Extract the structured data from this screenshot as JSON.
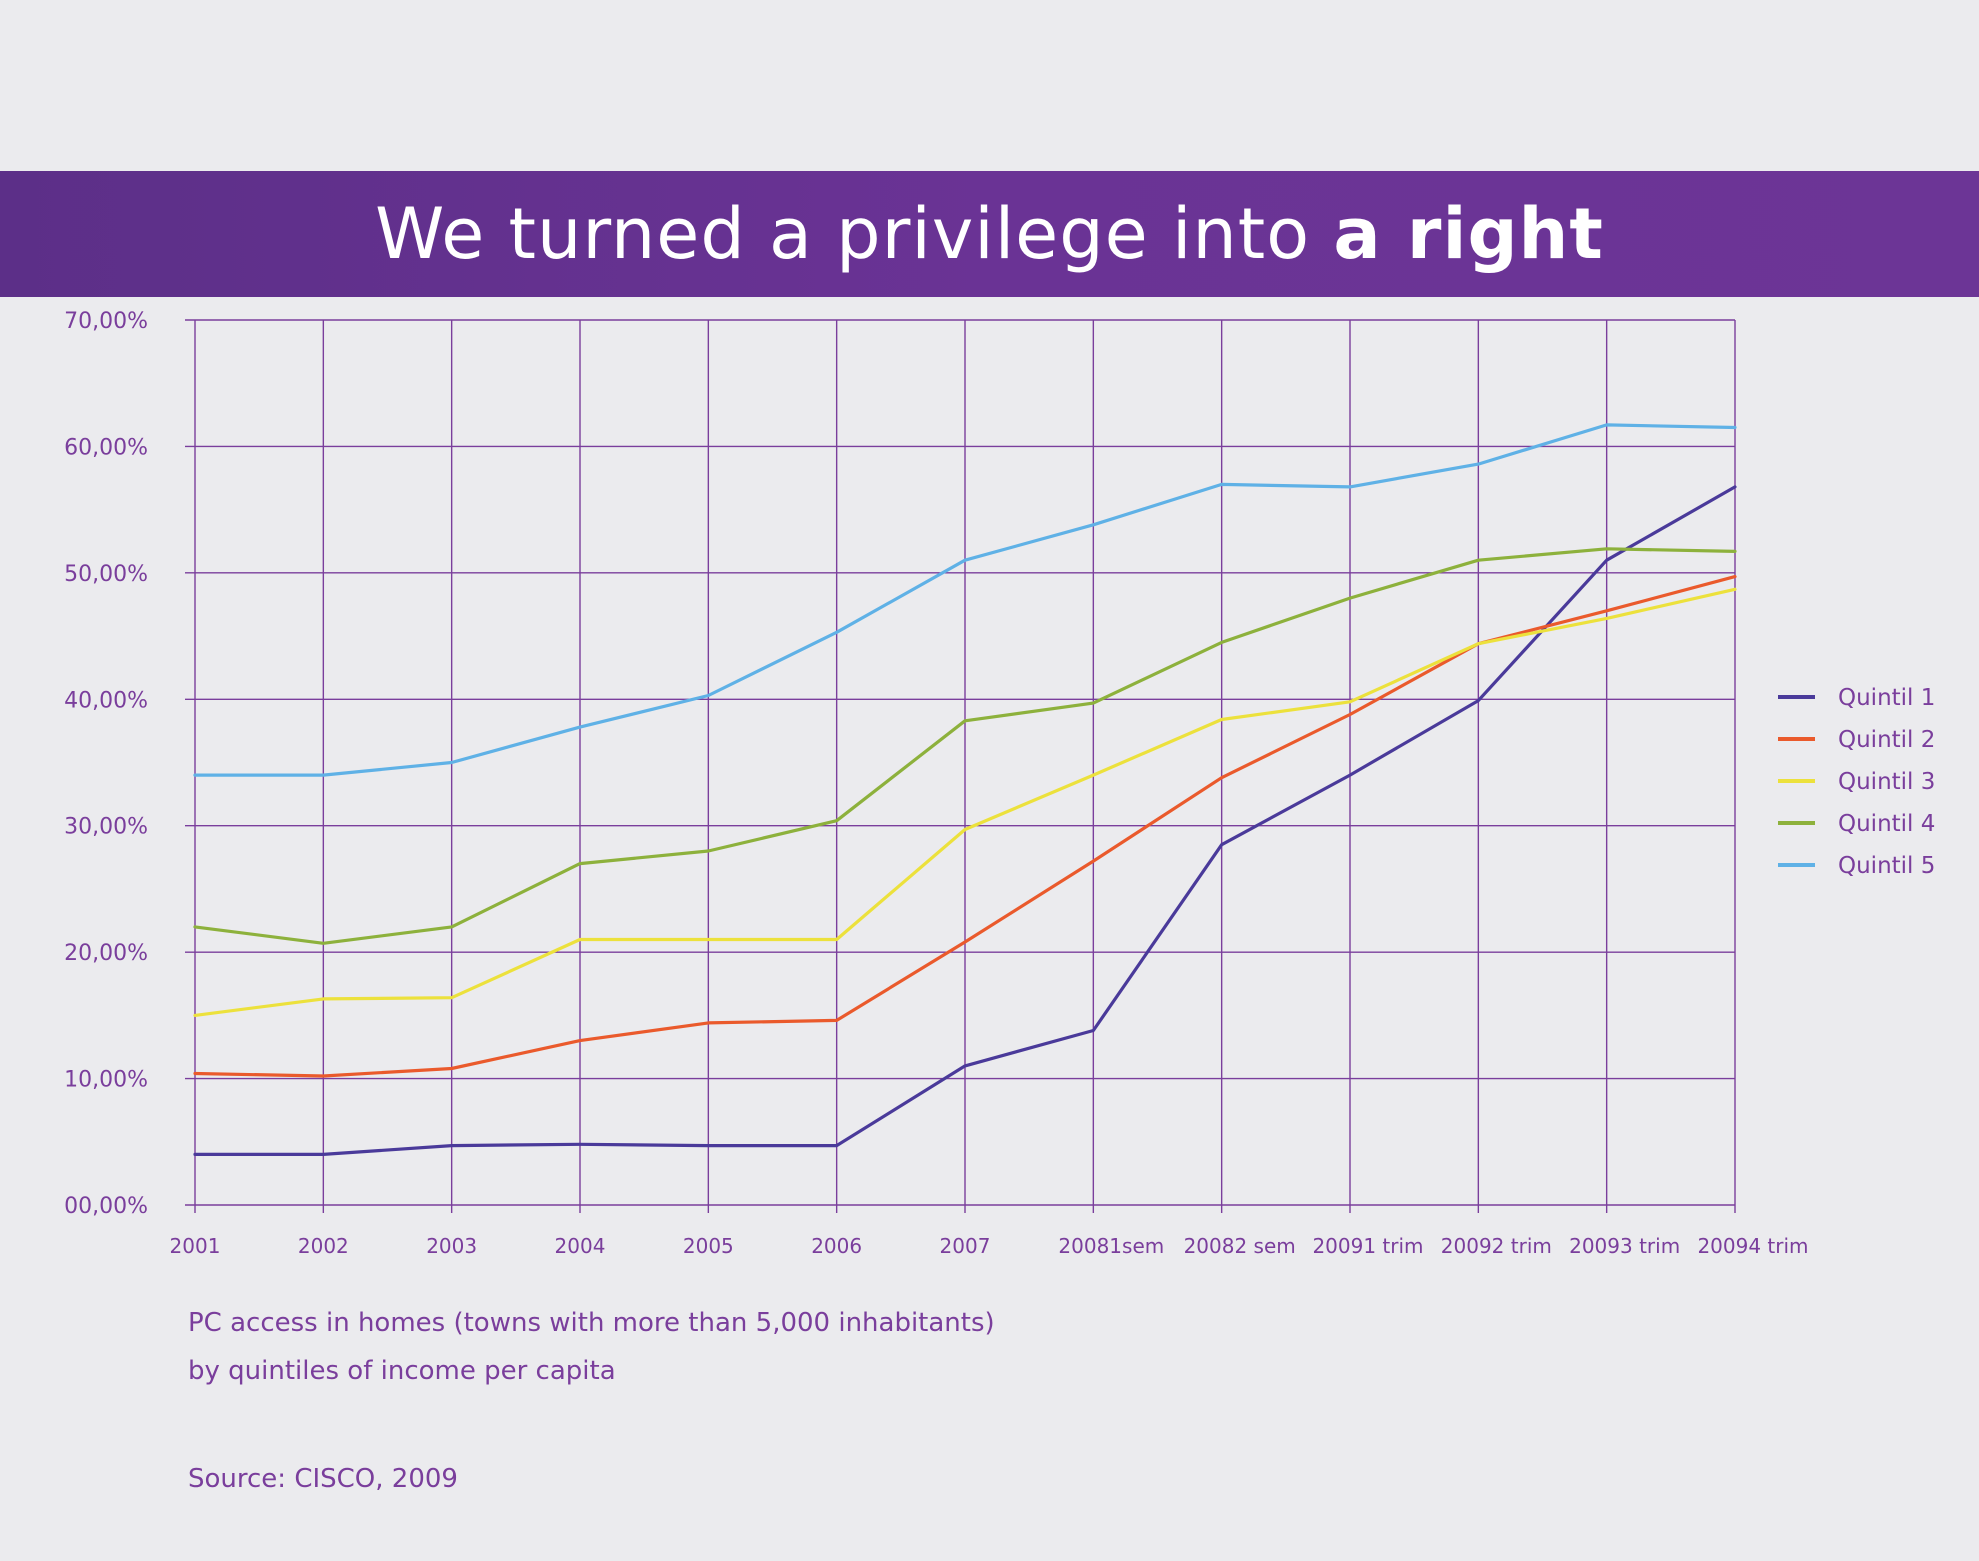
{
  "banner": {
    "title_regular": "We turned a privilege into ",
    "title_bold": "a right"
  },
  "caption": {
    "line1": "PC access in homes (towns with more than 5,000 inhabitants)",
    "line2": "by quintiles of income per capita",
    "source": "Source: CISCO, 2009"
  },
  "colors": {
    "banner": "#632f8f",
    "grid": "#7a3e9c",
    "text": "#7a3e9c"
  },
  "chart_data": {
    "type": "line",
    "categories": [
      "2001",
      "2002",
      "2003",
      "2004",
      "2005",
      "2006",
      "2007",
      "20081sem",
      "20082 sem",
      "20091 trim",
      "20092 trim",
      "20093 trim",
      "20094 trim"
    ],
    "y_tick_labels": [
      "00,00%",
      "10,00%",
      "20,00%",
      "30,00%",
      "40,00%",
      "50,00%",
      "60,00%",
      "70,00%"
    ],
    "ylim": [
      0,
      70
    ],
    "grid": true,
    "legend_position": "right",
    "series": [
      {
        "name": "Quintil 1",
        "color": "#4a3a9a",
        "values": [
          4.0,
          4.0,
          4.7,
          4.8,
          4.7,
          4.7,
          11.0,
          13.8,
          28.5,
          34.0,
          39.9,
          51.0,
          56.8
        ]
      },
      {
        "name": "Quintil 2",
        "color": "#ea5a2c",
        "values": [
          10.4,
          10.2,
          10.8,
          13.0,
          14.4,
          14.6,
          20.8,
          27.2,
          33.8,
          38.8,
          44.4,
          47.0,
          49.7
        ]
      },
      {
        "name": "Quintil 3",
        "color": "#ece13c",
        "values": [
          15.0,
          16.3,
          16.4,
          21.0,
          21.0,
          21.0,
          29.7,
          34.0,
          38.4,
          39.8,
          44.4,
          46.4,
          48.7
        ]
      },
      {
        "name": "Quintil 4",
        "color": "#8db13c",
        "values": [
          22.0,
          20.7,
          22.0,
          27.0,
          28.0,
          30.4,
          38.3,
          39.7,
          44.5,
          48.0,
          51.0,
          51.9,
          51.7
        ]
      },
      {
        "name": "Quintil 5",
        "color": "#5fb1e6",
        "values": [
          34.0,
          34.0,
          35.0,
          37.8,
          40.3,
          45.3,
          51.0,
          53.8,
          57.0,
          56.8,
          58.6,
          61.7,
          61.5
        ]
      }
    ]
  }
}
